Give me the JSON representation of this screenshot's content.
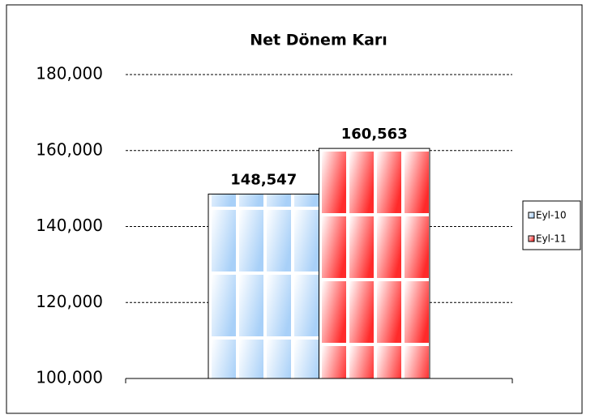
{
  "chart_data": {
    "type": "bar",
    "title": "Net Dönem Karı",
    "categories": [
      null
    ],
    "series": [
      {
        "name": "Eyl-10",
        "color": "#a8d0f8",
        "values": [
          148547
        ],
        "value_labels": [
          "148,547"
        ]
      },
      {
        "name": "Eyl-11",
        "color": "#ff2a2a",
        "values": [
          160563
        ],
        "value_labels": [
          "160,563"
        ]
      }
    ],
    "ylim": [
      100000,
      180000
    ],
    "yticks": [
      {
        "value": 100000,
        "label": "100,000"
      },
      {
        "value": 120000,
        "label": "120,000"
      },
      {
        "value": 140000,
        "label": "140,000"
      },
      {
        "value": 160000,
        "label": "160,000"
      },
      {
        "value": 180000,
        "label": "180,000"
      }
    ],
    "grid": true,
    "legend": "right"
  }
}
